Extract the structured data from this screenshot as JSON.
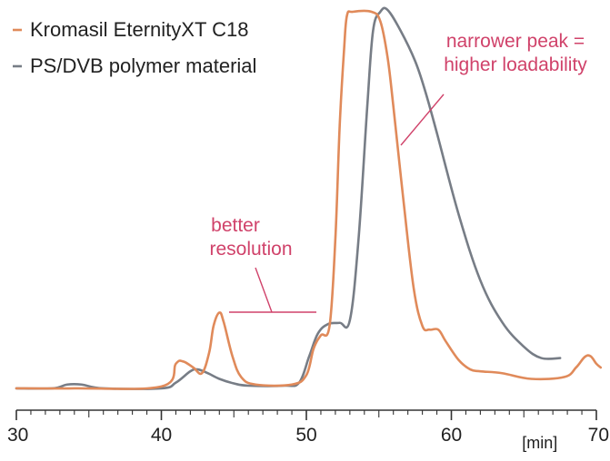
{
  "chart_data": {
    "type": "line",
    "title": "",
    "xlabel": "[min]",
    "ylabel": "",
    "xlim": [
      30,
      70
    ],
    "ylim": [
      0,
      100
    ],
    "x_ticks": [
      30,
      40,
      50,
      60,
      70
    ],
    "x_ticks_minor": 1,
    "grid": false,
    "legend_position": "top-left",
    "series": [
      {
        "name": "Kromasil EternityXT C18",
        "color": "#e08a5a",
        "points": [
          [
            30.0,
            0.5
          ],
          [
            34.0,
            0.5
          ],
          [
            40.0,
            1.0
          ],
          [
            41.0,
            7.0
          ],
          [
            41.5,
            7.6
          ],
          [
            42.2,
            6.0
          ],
          [
            42.8,
            4.5
          ],
          [
            43.3,
            10.0
          ],
          [
            43.6,
            17.0
          ],
          [
            44.0,
            20.5
          ],
          [
            44.3,
            18.0
          ],
          [
            44.9,
            9.0
          ],
          [
            45.5,
            3.5
          ],
          [
            46.5,
            1.5
          ],
          [
            49.0,
            1.5
          ],
          [
            50.0,
            4.0
          ],
          [
            50.5,
            11.0
          ],
          [
            51.0,
            14.5
          ],
          [
            51.6,
            17.0
          ],
          [
            52.0,
            40.0
          ],
          [
            52.3,
            70.0
          ],
          [
            52.6,
            90.0
          ],
          [
            52.8,
            99.0
          ],
          [
            53.2,
            100.0
          ],
          [
            54.5,
            100.0
          ],
          [
            55.1,
            97.5
          ],
          [
            55.6,
            88.0
          ],
          [
            56.0,
            75.0
          ],
          [
            56.7,
            50.0
          ],
          [
            57.4,
            27.0
          ],
          [
            58.0,
            17.0
          ],
          [
            58.5,
            16.0
          ],
          [
            59.1,
            16.0
          ],
          [
            59.6,
            13.0
          ],
          [
            60.5,
            8.0
          ],
          [
            61.3,
            5.5
          ],
          [
            62.0,
            5.0
          ],
          [
            63.5,
            4.5
          ],
          [
            65.5,
            3.0
          ],
          [
            67.8,
            3.5
          ],
          [
            68.6,
            6.0
          ],
          [
            69.2,
            8.8
          ],
          [
            69.6,
            9.0
          ],
          [
            70.0,
            7.0
          ],
          [
            70.3,
            6.0
          ]
        ]
      },
      {
        "name": "PS/DVB polymer material",
        "color": "#777d86",
        "points": [
          [
            30.0,
            0.5
          ],
          [
            32.5,
            0.5
          ],
          [
            33.5,
            1.5
          ],
          [
            34.5,
            1.5
          ],
          [
            36.0,
            0.5
          ],
          [
            40.0,
            0.5
          ],
          [
            41.0,
            2.0
          ],
          [
            42.0,
            5.0
          ],
          [
            42.5,
            5.5
          ],
          [
            43.2,
            4.5
          ],
          [
            44.0,
            3.0
          ],
          [
            45.0,
            1.8
          ],
          [
            46.0,
            1.2
          ],
          [
            48.5,
            1.2
          ],
          [
            49.5,
            2.0
          ],
          [
            50.2,
            9.0
          ],
          [
            50.8,
            15.0
          ],
          [
            51.5,
            17.5
          ],
          [
            52.3,
            17.8
          ],
          [
            53.0,
            18.5
          ],
          [
            53.6,
            40.0
          ],
          [
            54.2,
            75.0
          ],
          [
            54.6,
            95.0
          ],
          [
            55.1,
            100.0
          ],
          [
            55.6,
            100.5
          ],
          [
            56.5,
            95.0
          ],
          [
            57.5,
            87.0
          ],
          [
            58.2,
            79.0
          ],
          [
            59.0,
            68.0
          ],
          [
            60.5,
            46.5
          ],
          [
            62.0,
            29.0
          ],
          [
            63.5,
            18.0
          ],
          [
            65.0,
            11.5
          ],
          [
            66.2,
            8.5
          ],
          [
            67.5,
            8.5
          ]
        ]
      }
    ],
    "annotations": [
      {
        "text_lines": [
          "narrower peak =",
          "higher loadability"
        ],
        "color": "#d0426a"
      },
      {
        "text_lines": [
          "better",
          "resolution"
        ],
        "color": "#d0426a"
      }
    ]
  }
}
